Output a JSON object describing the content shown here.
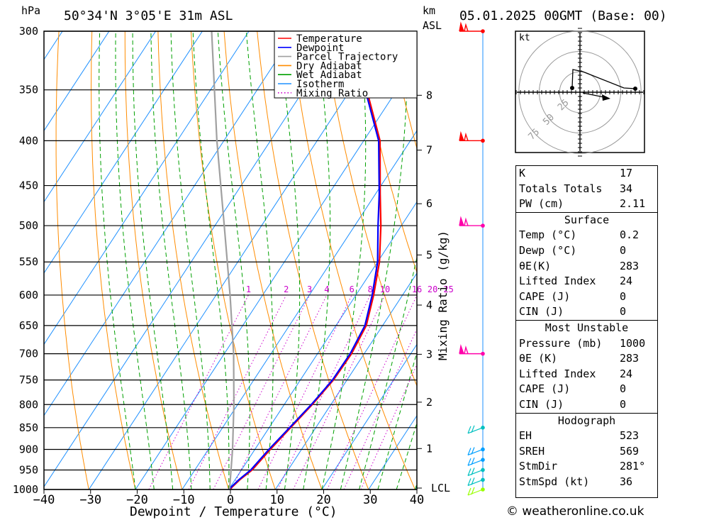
{
  "header": {
    "hpa_label": "hPa",
    "location": "50°34'N  3°05'E  31m  ASL",
    "km_label": "km",
    "asl_label": "ASL",
    "datetime": "05.01.2025  00GMT  (Base: 00)"
  },
  "legend": [
    {
      "label": "Temperature",
      "color": "#ff0000",
      "style": "solid"
    },
    {
      "label": "Dewpoint",
      "color": "#0000ff",
      "style": "solid"
    },
    {
      "label": "Parcel Trajectory",
      "color": "#a0a0a0",
      "style": "solid"
    },
    {
      "label": "Dry Adiabat",
      "color": "#ff8c00",
      "style": "solid"
    },
    {
      "label": "Wet Adiabat",
      "color": "#00a000",
      "style": "solid"
    },
    {
      "label": "Isotherm",
      "color": "#1e90ff",
      "style": "solid"
    },
    {
      "label": "Mixing Ratio",
      "color": "#cc00cc",
      "style": "dotted"
    }
  ],
  "chart_data": {
    "type": "line",
    "xlabel": "Dewpoint / Temperature (°C)",
    "ylabel": "hPa",
    "y2label": "Mixing Ratio (g/kg)",
    "x_ticks": [
      "−40",
      "−30",
      "−20",
      "−10",
      "0",
      "10",
      "20",
      "30",
      "40"
    ],
    "x_tick_values": [
      -40,
      -30,
      -20,
      -10,
      0,
      10,
      20,
      30,
      40
    ],
    "xlim": [
      -40,
      40
    ],
    "ylim": [
      1000,
      300
    ],
    "y_scale": "log",
    "pressure_levels": [
      300,
      350,
      400,
      450,
      500,
      550,
      600,
      650,
      700,
      750,
      800,
      850,
      900,
      950,
      1000
    ],
    "km_ticks": [
      {
        "label": "8",
        "p": 355
      },
      {
        "label": "7",
        "p": 410
      },
      {
        "label": "6",
        "p": 472
      },
      {
        "label": "5",
        "p": 540
      },
      {
        "label": "4",
        "p": 616
      },
      {
        "label": "3",
        "p": 701
      },
      {
        "label": "2",
        "p": 795
      },
      {
        "label": "1",
        "p": 898
      },
      {
        "label": "LCL",
        "p": 1000
      }
    ],
    "mixing_ratio_labels": [
      "1",
      "2",
      "3",
      "4",
      "6",
      "8",
      "10",
      "16",
      "20",
      "25"
    ],
    "mixing_ratio_values": [
      1,
      2,
      3,
      4,
      6,
      8,
      10,
      16,
      20,
      25
    ],
    "series": [
      {
        "name": "Temperature",
        "points": [
          [
            1000,
            0.2
          ],
          [
            975,
            1
          ],
          [
            950,
            2.3
          ],
          [
            900,
            3.3
          ],
          [
            850,
            4.6
          ],
          [
            800,
            6
          ],
          [
            750,
            7.1
          ],
          [
            700,
            7.3
          ],
          [
            650,
            6.5
          ],
          [
            600,
            3.8
          ],
          [
            550,
            0.4
          ],
          [
            500,
            -4.4
          ],
          [
            460,
            -9
          ],
          [
            400,
            -16.5
          ],
          [
            350,
            -26.5
          ],
          [
            300,
            -38.5
          ]
        ]
      },
      {
        "name": "Dewpoint",
        "points": [
          [
            1000,
            0
          ],
          [
            975,
            0.8
          ],
          [
            950,
            2
          ],
          [
            900,
            3
          ],
          [
            850,
            4.4
          ],
          [
            800,
            5.8
          ],
          [
            750,
            6.9
          ],
          [
            700,
            7
          ],
          [
            650,
            6.2
          ],
          [
            600,
            3.5
          ],
          [
            550,
            0
          ],
          [
            500,
            -5
          ],
          [
            460,
            -9.2
          ],
          [
            400,
            -16.8
          ],
          [
            350,
            -26.8
          ],
          [
            300,
            -38.8
          ]
        ]
      },
      {
        "name": "Parcel Trajectory",
        "points": [
          [
            1000,
            0.2
          ],
          [
            900,
            -4.8
          ],
          [
            800,
            -10.8
          ],
          [
            700,
            -18
          ],
          [
            600,
            -27
          ],
          [
            500,
            -38
          ],
          [
            400,
            -51.5
          ],
          [
            300,
            -68
          ]
        ]
      }
    ]
  },
  "hodograph": {
    "unit_label": "kt",
    "ring_labels": [
      "25",
      "50",
      "75"
    ],
    "ring_values": [
      25,
      50,
      75
    ]
  },
  "indices": {
    "top": [
      {
        "label": "K",
        "value": "17"
      },
      {
        "label": "Totals Totals",
        "value": "34"
      },
      {
        "label": "PW (cm)",
        "value": "2.11"
      }
    ],
    "surface_title": "Surface",
    "surface": [
      {
        "label": "Temp (°C)",
        "value": "0.2"
      },
      {
        "label": "Dewp (°C)",
        "value": "0"
      },
      {
        "label": "θE(K)",
        "value": "283"
      },
      {
        "label": "Lifted Index",
        "value": "24"
      },
      {
        "label": "CAPE (J)",
        "value": "0"
      },
      {
        "label": "CIN (J)",
        "value": "0"
      }
    ],
    "unstable_title": "Most Unstable",
    "unstable": [
      {
        "label": "Pressure (mb)",
        "value": "1000"
      },
      {
        "label": "θE (K)",
        "value": "283"
      },
      {
        "label": "Lifted Index",
        "value": "24"
      },
      {
        "label": "CAPE (J)",
        "value": "0"
      },
      {
        "label": "CIN (J)",
        "value": "0"
      }
    ],
    "hodo_title": "Hodograph",
    "hodo": [
      {
        "label": "EH",
        "value": "523"
      },
      {
        "label": "SREH",
        "value": "569"
      },
      {
        "label": "StmDir",
        "value": "281°"
      },
      {
        "label": "StmSpd (kt)",
        "value": "36"
      }
    ]
  },
  "wind_profile": {
    "levels_p": [
      300,
      400,
      500,
      700,
      850,
      900,
      925,
      950,
      975,
      1000
    ],
    "colors": [
      "#ff0000",
      "#ff0000",
      "#ff00aa",
      "#ff00aa",
      "#00c0c0",
      "#00a0ff",
      "#00a0ff",
      "#00c0c0",
      "#00c0c0",
      "#99ff00"
    ]
  },
  "footer": "© weatheronline.co.uk"
}
